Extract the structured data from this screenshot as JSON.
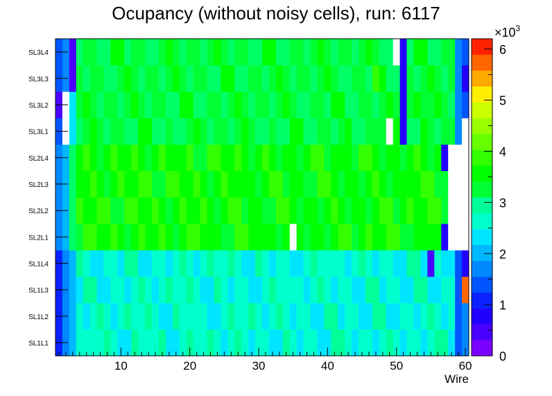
{
  "chart_data": {
    "type": "heatmap",
    "title": "Ocupancy (without noisy cells), run: 6117",
    "xlabel": "Wire",
    "ylabel": "",
    "xlim": [
      0.5,
      60.5
    ],
    "x_ticks": [
      10,
      20,
      30,
      40,
      50,
      60
    ],
    "y_categories": [
      "SL1L1",
      "SL1L2",
      "SL1L3",
      "SL1L4",
      "SL2L1",
      "SL2L2",
      "SL2L3",
      "SL2L4",
      "SL3L1",
      "SL3L2",
      "SL3L3",
      "SL3L4"
    ],
    "z_range": [
      0,
      6200
    ],
    "z_ticks": [
      0,
      1,
      2,
      3,
      4,
      5,
      6
    ],
    "z_exponent_label": "×10",
    "z_exponent_power": "3",
    "colorbar_levels": 20,
    "bands": [
      {
        "rows": [
          "SL1L1",
          "SL1L2",
          "SL1L3",
          "SL1L4"
        ],
        "typical": 2600,
        "edge_left": [
          1200,
          1800,
          2100
        ],
        "edge_right": [
          1400,
          1700
        ]
      },
      {
        "rows": [
          "SL2L1",
          "SL2L2",
          "SL2L3",
          "SL2L4"
        ],
        "typical": 3900,
        "edge_left": [
          1600,
          2100,
          3300
        ],
        "edge_right": [
          1900,
          2600
        ]
      },
      {
        "rows": [
          "SL3L1",
          "SL3L2",
          "SL3L3",
          "SL3L4"
        ],
        "typical": 3500,
        "edge_left": [
          1300,
          1600,
          2400
        ],
        "edge_right": [
          1600,
          1300
        ]
      }
    ],
    "special_cells": [
      {
        "row": "SL1L3",
        "wire": 60,
        "value": 6100
      },
      {
        "row": "SL1L4",
        "wire": 55,
        "value": 400
      },
      {
        "row": "SL1L4",
        "wire": 60,
        "value": 800
      },
      {
        "row": "SL2L1",
        "wire": 35,
        "value": 0
      },
      {
        "row": "SL2L1",
        "wire": 57,
        "value": 800
      },
      {
        "row": "SL2L1",
        "wire": 58,
        "value": 0
      },
      {
        "row": "SL2L1",
        "wire": 59,
        "value": 0
      },
      {
        "row": "SL2L1",
        "wire": 60,
        "value": 0
      },
      {
        "row": "SL2L2",
        "wire": 58,
        "value": 0
      },
      {
        "row": "SL2L2",
        "wire": 59,
        "value": 0
      },
      {
        "row": "SL2L2",
        "wire": 60,
        "value": 0
      },
      {
        "row": "SL2L3",
        "wire": 58,
        "value": 0
      },
      {
        "row": "SL2L3",
        "wire": 59,
        "value": 0
      },
      {
        "row": "SL2L3",
        "wire": 60,
        "value": 0
      },
      {
        "row": "SL2L4",
        "wire": 57,
        "value": 800
      },
      {
        "row": "SL2L4",
        "wire": 58,
        "value": 0
      },
      {
        "row": "SL2L4",
        "wire": 59,
        "value": 0
      },
      {
        "row": "SL2L4",
        "wire": 60,
        "value": 0
      },
      {
        "row": "SL3L1",
        "wire": 2,
        "value": 0
      },
      {
        "row": "SL3L1",
        "wire": 49,
        "value": 0
      },
      {
        "row": "SL3L1",
        "wire": 51,
        "value": 900
      },
      {
        "row": "SL3L1",
        "wire": 60,
        "value": 0
      },
      {
        "row": "SL3L2",
        "wire": 1,
        "value": 500
      },
      {
        "row": "SL3L2",
        "wire": 2,
        "value": 0
      },
      {
        "row": "SL3L2",
        "wire": 51,
        "value": 800
      },
      {
        "row": "SL3L3",
        "wire": 3,
        "value": 600
      },
      {
        "row": "SL3L3",
        "wire": 47,
        "value": 4300
      },
      {
        "row": "SL3L3",
        "wire": 51,
        "value": 800
      },
      {
        "row": "SL3L3",
        "wire": 60,
        "value": 700
      },
      {
        "row": "SL3L4",
        "wire": 3,
        "value": 500
      },
      {
        "row": "SL3L4",
        "wire": 50,
        "value": 0
      },
      {
        "row": "SL3L4",
        "wire": 51,
        "value": 700
      },
      {
        "row": "SL3L4",
        "wire": 60,
        "value": 1300
      }
    ]
  },
  "colors": {
    "palette": [
      "#7a00ff",
      "#4b00ff",
      "#2200ff",
      "#0a22ff",
      "#0055ff",
      "#0088ff",
      "#00b8ff",
      "#00e5ff",
      "#00ffcc",
      "#00ff99",
      "#00ff66",
      "#00ff33",
      "#00ff00",
      "#33ff00",
      "#66ff00",
      "#99ff00",
      "#ccff00",
      "#ffee00",
      "#ffaa00",
      "#ff6600",
      "#ff2200"
    ],
    "background": "#ffffff",
    "axis": "#000000"
  }
}
